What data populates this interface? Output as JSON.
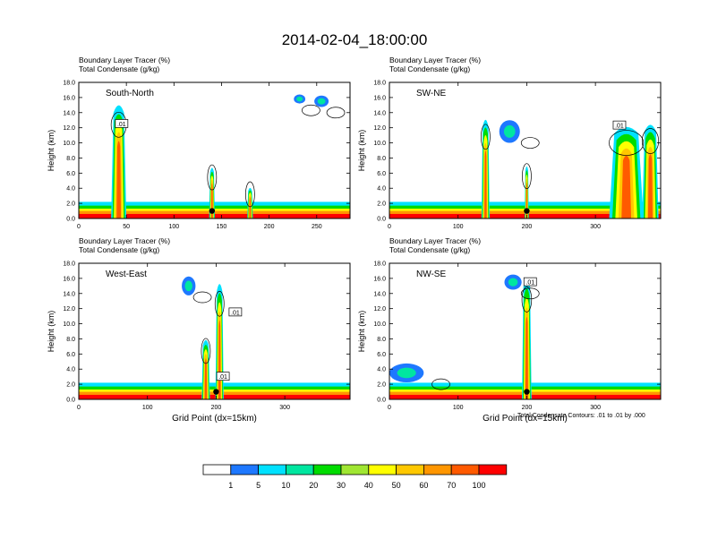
{
  "title": "2014-02-04_18:00:00",
  "chart_data": [
    {
      "type": "heatmap",
      "subtitle1": "Boundary Layer Tracer   (%)",
      "subtitle2": "Total Condensate   (g/kg)",
      "label": "South-North",
      "ylabel": "Height (km)",
      "xlabel": "",
      "xlim": [
        0,
        285
      ],
      "ylim": [
        0,
        18
      ],
      "xticks": [
        0,
        50,
        100,
        150,
        200,
        250
      ],
      "yticks": [
        0,
        2,
        4,
        6,
        8,
        10,
        12,
        14,
        16,
        18
      ],
      "box_labels": [
        {
          "text": ".01",
          "x": 45,
          "y": 12.5
        }
      ],
      "marker": {
        "x": 140,
        "y": 1.0
      },
      "towers": [
        {
          "x": 42,
          "halfwidth": 8,
          "top": 15.5
        },
        {
          "x": 140,
          "halfwidth": 3,
          "top": 6.8
        },
        {
          "x": 180,
          "halfwidth": 3,
          "top": 4.0
        }
      ],
      "cloud_patches": [
        {
          "x": 232,
          "y": 15.8,
          "w": 12,
          "h": 1.2
        },
        {
          "x": 255,
          "y": 15.5,
          "w": 15,
          "h": 1.5
        }
      ]
    },
    {
      "type": "heatmap",
      "subtitle1": "Boundary Layer Tracer   (%)",
      "subtitle2": "Total Condensate   (g/kg)",
      "label": "SW-NE",
      "ylabel": "Height (km)",
      "xlabel": "",
      "xlim": [
        0,
        395
      ],
      "ylim": [
        0,
        18
      ],
      "xticks": [
        0,
        100,
        200,
        300
      ],
      "yticks": [
        0,
        2,
        4,
        6,
        8,
        10,
        12,
        14,
        16,
        18
      ],
      "box_labels": [
        {
          "text": ".01",
          "x": 335,
          "y": 12.3
        }
      ],
      "marker": {
        "x": 200,
        "y": 1.0
      },
      "towers": [
        {
          "x": 140,
          "halfwidth": 6,
          "top": 13.5
        },
        {
          "x": 200,
          "halfwidth": 3,
          "top": 7.0
        },
        {
          "x": 345,
          "halfwidth": 25,
          "top": 12.5
        },
        {
          "x": 380,
          "halfwidth": 12,
          "top": 12.8
        }
      ],
      "cloud_patches": [
        {
          "x": 175,
          "y": 11.5,
          "w": 30,
          "h": 3
        }
      ]
    },
    {
      "type": "heatmap",
      "subtitle1": "Boundary Layer Tracer   (%)",
      "subtitle2": "Total Condensate   (g/kg)",
      "label": "West-East",
      "ylabel": "Height (km)",
      "xlabel": "Grid Point (dx=15km)",
      "xlim": [
        0,
        395
      ],
      "ylim": [
        0,
        18
      ],
      "xticks": [
        0,
        100,
        200,
        300
      ],
      "yticks": [
        0,
        2,
        4,
        6,
        8,
        10,
        12,
        14,
        16,
        18
      ],
      "box_labels": [
        {
          "text": ".01",
          "x": 228,
          "y": 11.5
        },
        {
          "text": ".01",
          "x": 210,
          "y": 3.0
        }
      ],
      "marker": {
        "x": 200,
        "y": 1.0
      },
      "towers": [
        {
          "x": 185,
          "halfwidth": 6,
          "top": 8.0
        },
        {
          "x": 205,
          "halfwidth": 6,
          "top": 15.8
        }
      ],
      "cloud_patches": [
        {
          "x": 160,
          "y": 15.0,
          "w": 20,
          "h": 2.5
        }
      ]
    },
    {
      "type": "heatmap",
      "subtitle1": "Boundary Layer Tracer   (%)",
      "subtitle2": "Total Condensate   (g/kg)",
      "label": "NW-SE",
      "ylabel": "Height (km)",
      "xlabel": "Grid Point (dx=15km)",
      "xlim": [
        0,
        395
      ],
      "ylim": [
        0,
        18
      ],
      "xticks": [
        0,
        100,
        200,
        300
      ],
      "yticks": [
        0,
        2,
        4,
        6,
        8,
        10,
        12,
        14,
        16,
        18
      ],
      "box_labels": [
        {
          "text": ".01",
          "x": 205,
          "y": 15.5
        }
      ],
      "marker": {
        "x": 200,
        "y": 1.0
      },
      "towers": [
        {
          "x": 200,
          "halfwidth": 7,
          "top": 16.5
        }
      ],
      "cloud_patches": [
        {
          "x": 25,
          "y": 3.5,
          "w": 50,
          "h": 2.5
        },
        {
          "x": 180,
          "y": 15.5,
          "w": 25,
          "h": 2
        }
      ]
    }
  ],
  "contour_note": "Total Condensate Contours: .01 to .01 by .000",
  "colorbar": {
    "colors": [
      "#ffffff",
      "#1e78ff",
      "#00e1ff",
      "#00e6a0",
      "#00dc00",
      "#a0e632",
      "#ffff00",
      "#ffc800",
      "#ff9600",
      "#ff5a00",
      "#ff0000"
    ],
    "labels": [
      "1",
      "5",
      "10",
      "20",
      "30",
      "40",
      "50",
      "60",
      "70",
      "100"
    ]
  }
}
